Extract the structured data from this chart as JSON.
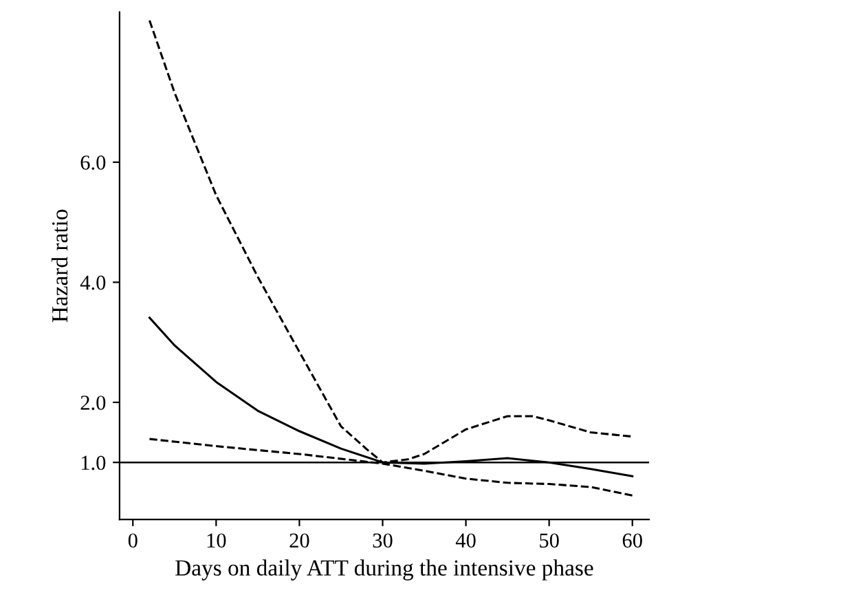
{
  "chart_data": {
    "type": "line",
    "xlabel": "Days on daily ATT during the intensive phase",
    "ylabel": "Hazard ratio",
    "xlim": [
      -1.6,
      62
    ],
    "ylim": [
      0.05,
      8.5
    ],
    "xticks": [
      0,
      10,
      20,
      30,
      40,
      50,
      60
    ],
    "yticks": [
      {
        "value": 1,
        "label": "1.0"
      },
      {
        "value": 2,
        "label": "2.0"
      },
      {
        "value": 4,
        "label": "4.0"
      },
      {
        "value": 6,
        "label": "6.0"
      }
    ],
    "series": [
      {
        "color": "#000000",
        "line_style": "solid",
        "x": [
          2,
          5,
          10,
          15,
          20,
          25,
          30,
          35,
          40,
          45,
          50,
          55,
          60
        ],
        "values": [
          3.41,
          2.95,
          2.34,
          1.86,
          1.52,
          1.23,
          1.0,
          0.98,
          1.02,
          1.07,
          1.0,
          0.89,
          0.77
        ]
      },
      {
        "color": "#000000",
        "line_style": "dashed",
        "x": [
          2,
          5,
          10,
          15,
          20,
          25,
          28,
          30,
          33,
          35,
          40,
          45,
          48,
          50,
          55,
          60
        ],
        "values": [
          8.36,
          7.16,
          5.45,
          4.09,
          2.84,
          1.6,
          1.23,
          1.0,
          1.05,
          1.14,
          1.55,
          1.77,
          1.77,
          1.7,
          1.5,
          1.43
        ]
      },
      {
        "color": "#000000",
        "line_style": "dashed",
        "x": [
          2,
          10,
          20,
          30,
          35,
          40,
          45,
          50,
          55,
          60
        ],
        "values": [
          1.39,
          1.27,
          1.14,
          0.98,
          0.86,
          0.73,
          0.66,
          0.64,
          0.59,
          0.45
        ]
      }
    ],
    "ref_lines": [
      {
        "axis": "y",
        "value": 1,
        "color": "#000000",
        "line_style": "solid"
      }
    ],
    "grid": false,
    "marker": "none"
  }
}
